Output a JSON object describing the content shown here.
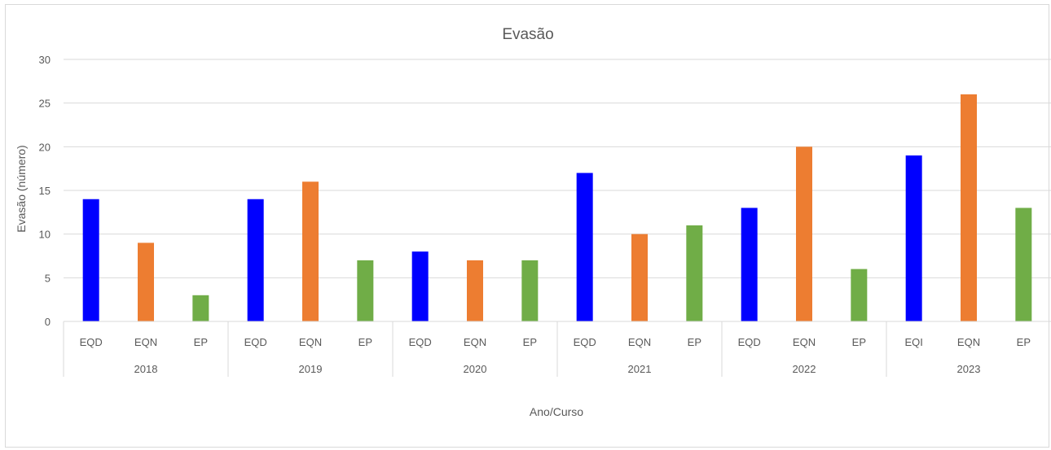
{
  "chart_data": {
    "type": "bar",
    "title": "Evasão",
    "xlabel": "Ano/Curso",
    "ylabel": "Evasão (número)",
    "ylim": [
      0,
      30
    ],
    "yticks": [
      0,
      5,
      10,
      15,
      20,
      25,
      30
    ],
    "grid": true,
    "legend": "none",
    "groups": [
      {
        "year": "2018",
        "bars": [
          {
            "course": "EQD",
            "value": 14,
            "color": "#0000ff"
          },
          {
            "course": "EQN",
            "value": 9,
            "color": "#ed7d31"
          },
          {
            "course": "EP",
            "value": 3,
            "color": "#70ad47"
          }
        ]
      },
      {
        "year": "2019",
        "bars": [
          {
            "course": "EQD",
            "value": 14,
            "color": "#0000ff"
          },
          {
            "course": "EQN",
            "value": 16,
            "color": "#ed7d31"
          },
          {
            "course": "EP",
            "value": 7,
            "color": "#70ad47"
          }
        ]
      },
      {
        "year": "2020",
        "bars": [
          {
            "course": "EQD",
            "value": 8,
            "color": "#0000ff"
          },
          {
            "course": "EQN",
            "value": 7,
            "color": "#ed7d31"
          },
          {
            "course": "EP",
            "value": 7,
            "color": "#70ad47"
          }
        ]
      },
      {
        "year": "2021",
        "bars": [
          {
            "course": "EQD",
            "value": 17,
            "color": "#0000ff"
          },
          {
            "course": "EQN",
            "value": 10,
            "color": "#ed7d31"
          },
          {
            "course": "EP",
            "value": 11,
            "color": "#70ad47"
          }
        ]
      },
      {
        "year": "2022",
        "bars": [
          {
            "course": "EQD",
            "value": 13,
            "color": "#0000ff"
          },
          {
            "course": "EQN",
            "value": 20,
            "color": "#ed7d31"
          },
          {
            "course": "EP",
            "value": 6,
            "color": "#70ad47"
          }
        ]
      },
      {
        "year": "2023",
        "bars": [
          {
            "course": "EQI",
            "value": 19,
            "color": "#0000ff"
          },
          {
            "course": "EQN",
            "value": 26,
            "color": "#ed7d31"
          },
          {
            "course": "EP",
            "value": 13,
            "color": "#70ad47"
          }
        ]
      }
    ]
  }
}
